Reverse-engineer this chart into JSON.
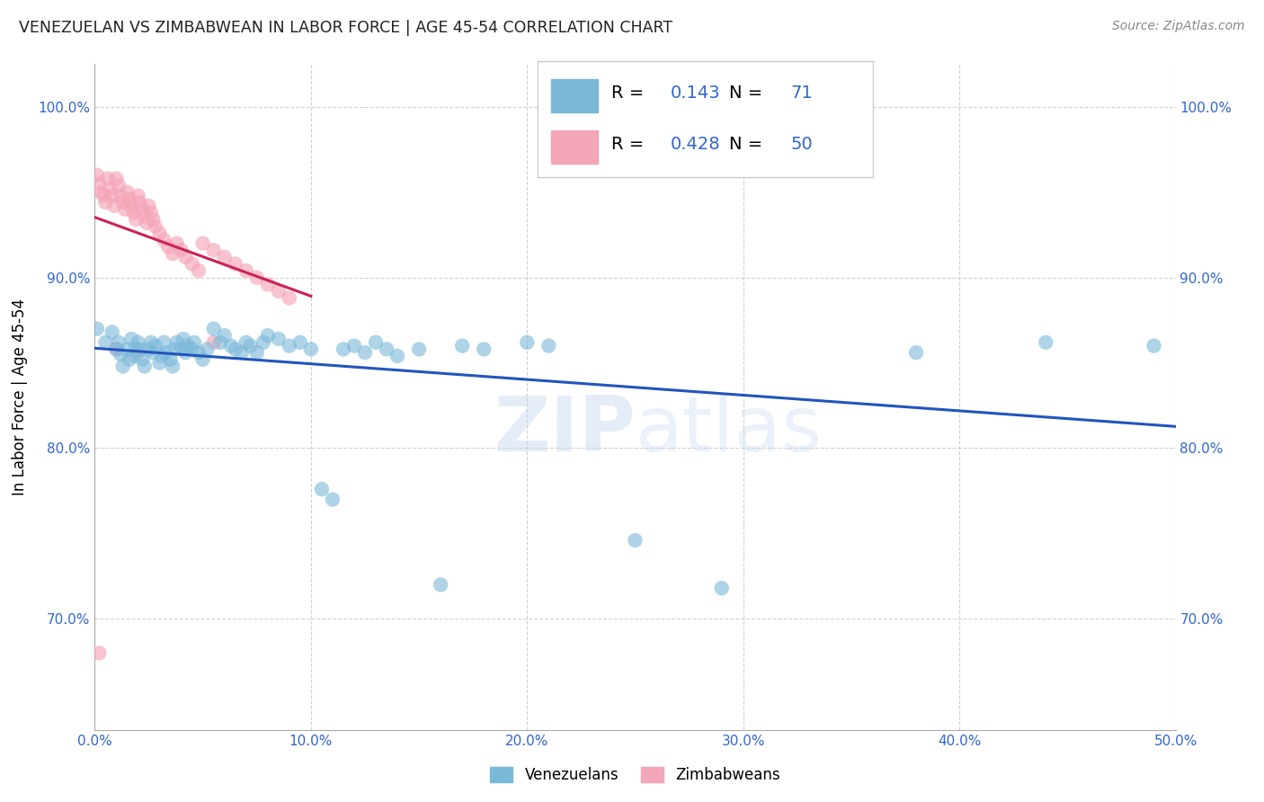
{
  "title": "VENEZUELAN VS ZIMBABWEAN IN LABOR FORCE | AGE 45-54 CORRELATION CHART",
  "source": "Source: ZipAtlas.com",
  "ylabel": "In Labor Force | Age 45-54",
  "xmin": 0.0,
  "xmax": 0.5,
  "ymin": 0.635,
  "ymax": 1.025,
  "xticks": [
    0.0,
    0.1,
    0.2,
    0.3,
    0.4,
    0.5
  ],
  "xtick_labels": [
    "0.0%",
    "10.0%",
    "20.0%",
    "30.0%",
    "40.0%",
    "50.0%"
  ],
  "yticks": [
    0.7,
    0.8,
    0.9,
    1.0
  ],
  "ytick_labels": [
    "70.0%",
    "80.0%",
    "90.0%",
    "100.0%"
  ],
  "venezuelan_color": "#7ab8d9",
  "zimbabwean_color": "#f4a5b8",
  "venezuelan_R": 0.143,
  "venezuelan_N": 71,
  "zimbabwean_R": 0.428,
  "zimbabwean_N": 50,
  "trend_blue": "#2255bb",
  "trend_pink": "#cc2255",
  "watermark_zip": "ZIP",
  "watermark_atlas": "atlas",
  "venezuelan_x": [
    0.001,
    0.005,
    0.008,
    0.01,
    0.011,
    0.012,
    0.013,
    0.015,
    0.016,
    0.017,
    0.018,
    0.019,
    0.02,
    0.021,
    0.022,
    0.023,
    0.025,
    0.026,
    0.027,
    0.028,
    0.03,
    0.031,
    0.032,
    0.033,
    0.035,
    0.036,
    0.037,
    0.038,
    0.04,
    0.041,
    0.042,
    0.043,
    0.045,
    0.046,
    0.048,
    0.05,
    0.052,
    0.055,
    0.058,
    0.06,
    0.063,
    0.065,
    0.068,
    0.07,
    0.072,
    0.075,
    0.078,
    0.08,
    0.085,
    0.09,
    0.095,
    0.1,
    0.105,
    0.11,
    0.115,
    0.12,
    0.125,
    0.13,
    0.135,
    0.14,
    0.15,
    0.16,
    0.17,
    0.18,
    0.2,
    0.21,
    0.25,
    0.29,
    0.38,
    0.44,
    0.49
  ],
  "venezuelan_y": [
    0.87,
    0.862,
    0.868,
    0.858,
    0.862,
    0.855,
    0.848,
    0.858,
    0.852,
    0.864,
    0.854,
    0.858,
    0.862,
    0.858,
    0.852,
    0.848,
    0.858,
    0.862,
    0.856,
    0.86,
    0.85,
    0.854,
    0.862,
    0.856,
    0.852,
    0.848,
    0.858,
    0.862,
    0.858,
    0.864,
    0.856,
    0.86,
    0.858,
    0.862,
    0.856,
    0.852,
    0.858,
    0.87,
    0.862,
    0.866,
    0.86,
    0.858,
    0.856,
    0.862,
    0.86,
    0.856,
    0.862,
    0.866,
    0.864,
    0.86,
    0.862,
    0.858,
    0.776,
    0.77,
    0.858,
    0.86,
    0.856,
    0.862,
    0.858,
    0.854,
    0.858,
    0.72,
    0.86,
    0.858,
    0.862,
    0.86,
    0.746,
    0.718,
    0.856,
    0.862,
    0.86
  ],
  "zimbabwean_x": [
    0.001,
    0.002,
    0.003,
    0.004,
    0.005,
    0.006,
    0.007,
    0.008,
    0.009,
    0.01,
    0.011,
    0.012,
    0.013,
    0.014,
    0.015,
    0.016,
    0.017,
    0.018,
    0.019,
    0.02,
    0.021,
    0.022,
    0.023,
    0.024,
    0.025,
    0.026,
    0.027,
    0.028,
    0.03,
    0.032,
    0.034,
    0.036,
    0.038,
    0.04,
    0.042,
    0.045,
    0.048,
    0.05,
    0.055,
    0.06,
    0.065,
    0.07,
    0.075,
    0.08,
    0.085,
    0.09,
    0.01,
    0.02,
    0.055,
    0.002
  ],
  "zimbabwean_y": [
    0.96,
    0.955,
    0.95,
    0.948,
    0.944,
    0.958,
    0.952,
    0.948,
    0.942,
    0.958,
    0.954,
    0.948,
    0.944,
    0.94,
    0.95,
    0.946,
    0.942,
    0.938,
    0.934,
    0.948,
    0.944,
    0.94,
    0.936,
    0.932,
    0.942,
    0.938,
    0.934,
    0.93,
    0.926,
    0.922,
    0.918,
    0.914,
    0.92,
    0.916,
    0.912,
    0.908,
    0.904,
    0.92,
    0.916,
    0.912,
    0.908,
    0.904,
    0.9,
    0.896,
    0.892,
    0.888,
    0.858,
    0.856,
    0.862,
    0.68
  ]
}
